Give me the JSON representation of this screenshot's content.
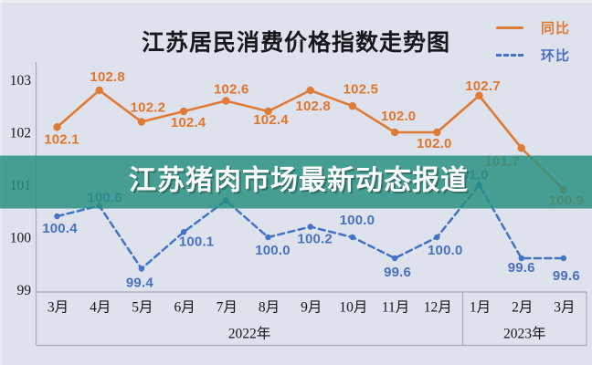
{
  "title": "江苏居民消费价格指数走势图",
  "banner": {
    "text": "江苏猪肉市场最新动态报道"
  },
  "legend": {
    "items": [
      {
        "label": "同比",
        "line_style": "solid",
        "color": "#e07b36"
      },
      {
        "label": "环比",
        "line_style": "dashed",
        "color": "#4472c4"
      }
    ]
  },
  "colors": {
    "background": "#dee2ec",
    "axis": "#a7adb9",
    "banner_fill": "rgba(39,144,127,0.83)",
    "banner_text": "#ffffff",
    "series_yoy": "#e07b36",
    "series_mom": "#4472c4",
    "title_text": "#17171c"
  },
  "chart_data": {
    "type": "line",
    "title": "江苏居民消费价格指数走势图",
    "categories": [
      "3月",
      "4月",
      "5月",
      "6月",
      "7月",
      "8月",
      "9月",
      "10月",
      "11月",
      "12月",
      "1月",
      "2月",
      "3月"
    ],
    "x_groups": [
      {
        "label": "2022年",
        "months": 10
      },
      {
        "label": "2023年",
        "months": 3
      }
    ],
    "yticks": [
      99,
      100,
      101,
      102,
      103
    ],
    "ylim": [
      98.6,
      103.4
    ],
    "grid": false,
    "legend_position": "top-right",
    "series": [
      {
        "name": "同比",
        "style": "solid",
        "values": [
          102.1,
          102.8,
          102.2,
          102.4,
          102.6,
          102.4,
          102.8,
          102.5,
          102.0,
          102.0,
          102.7,
          101.7,
          100.9
        ]
      },
      {
        "name": "环比",
        "style": "dashed",
        "values": [
          100.4,
          100.6,
          99.4,
          100.1,
          100.7,
          100.0,
          100.2,
          100.0,
          99.6,
          100.0,
          101.0,
          99.6,
          99.6
        ],
        "hidden_label_indices": [
          4
        ],
        "note": "7月 point is covered by the banner overlay; its value is estimated from the visible line slope and its label is not visible"
      }
    ]
  },
  "layout_hints": {
    "label_offsets_yoy": [
      [
        5,
        18
      ],
      [
        9,
        -10
      ],
      [
        7,
        -11
      ],
      [
        5,
        17
      ],
      [
        6,
        -8
      ],
      [
        3,
        14
      ],
      [
        3,
        22
      ],
      [
        9,
        -14
      ],
      [
        4,
        -13
      ],
      [
        -3,
        17
      ],
      [
        4,
        -6
      ],
      [
        -21,
        19
      ],
      [
        3,
        16
      ]
    ],
    "label_offsets_mom": [
      [
        3,
        18
      ],
      [
        6,
        -4
      ],
      [
        -2,
        20
      ],
      [
        14,
        15
      ],
      null,
      [
        5,
        19
      ],
      [
        5,
        18
      ],
      [
        5,
        -14
      ],
      [
        3,
        20
      ],
      [
        9,
        19
      ],
      [
        -9,
        -6
      ],
      [
        0,
        15
      ],
      [
        3,
        24
      ]
    ]
  }
}
